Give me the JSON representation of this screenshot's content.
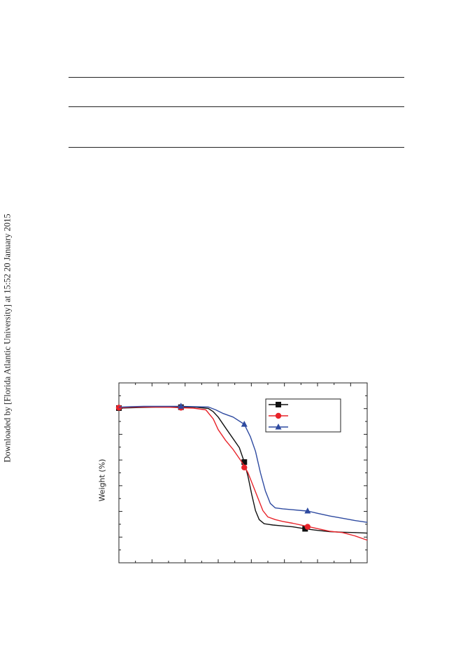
{
  "side_note": "Downloaded by [Florida Atlantic University] at 15:52 20 January 2015",
  "chart_data": {
    "type": "line",
    "ylabel": "Weight (%)",
    "xlabel": "",
    "legend_position": "top-right",
    "grid": false,
    "x_range": [
      0,
      100
    ],
    "y_range": [
      0,
      100
    ],
    "series": [
      {
        "color": "#111111",
        "marker": "square",
        "points": [
          [
            0,
            86
          ],
          [
            8,
            86.3
          ],
          [
            15,
            86.5
          ],
          [
            25,
            86.5
          ],
          [
            31,
            86.5
          ],
          [
            36,
            85.8
          ],
          [
            38,
            84
          ],
          [
            40,
            81
          ],
          [
            43,
            75
          ],
          [
            46,
            69
          ],
          [
            48.5,
            64
          ],
          [
            50.5,
            56
          ],
          [
            52,
            48
          ],
          [
            53.5,
            38
          ],
          [
            55,
            29
          ],
          [
            56.5,
            24
          ],
          [
            58.5,
            21.7
          ],
          [
            62,
            21
          ],
          [
            66,
            20.5
          ],
          [
            70,
            20
          ],
          [
            75,
            18.9
          ],
          [
            80,
            18
          ],
          [
            85,
            17.3
          ],
          [
            90,
            17
          ],
          [
            95,
            16.8
          ],
          [
            100,
            16.5
          ]
        ],
        "marker_points": [
          [
            0,
            86
          ],
          [
            25,
            86.5
          ],
          [
            50.5,
            56
          ],
          [
            75,
            18.9
          ]
        ]
      },
      {
        "color": "#e8232a",
        "marker": "circle",
        "points": [
          [
            0,
            86.2
          ],
          [
            5,
            86.5
          ],
          [
            12,
            86.6
          ],
          [
            20,
            86.5
          ],
          [
            25,
            86.2
          ],
          [
            30,
            86
          ],
          [
            35,
            85
          ],
          [
            38,
            80
          ],
          [
            40,
            74
          ],
          [
            43,
            68
          ],
          [
            46,
            63
          ],
          [
            48,
            59
          ],
          [
            50,
            55
          ],
          [
            52,
            50
          ],
          [
            54,
            43
          ],
          [
            56,
            36
          ],
          [
            58,
            29
          ],
          [
            60,
            25.5
          ],
          [
            63,
            24
          ],
          [
            66,
            23
          ],
          [
            70,
            22
          ],
          [
            75,
            20.5
          ],
          [
            80,
            19
          ],
          [
            85,
            17.5
          ],
          [
            90,
            16.8
          ],
          [
            95,
            15
          ],
          [
            100,
            12.6
          ]
        ],
        "marker_points": [
          [
            0,
            86.2
          ],
          [
            25,
            86.2
          ],
          [
            50.5,
            53
          ],
          [
            76,
            20
          ]
        ]
      },
      {
        "color": "#2e4aa0",
        "marker": "triangle",
        "points": [
          [
            0,
            86.5
          ],
          [
            5,
            86.8
          ],
          [
            10,
            87
          ],
          [
            20,
            87
          ],
          [
            25,
            87
          ],
          [
            30,
            86.8
          ],
          [
            36,
            86.6
          ],
          [
            39,
            85
          ],
          [
            42,
            83
          ],
          [
            46,
            81
          ],
          [
            50.5,
            77
          ],
          [
            53,
            70
          ],
          [
            55,
            62
          ],
          [
            57,
            50
          ],
          [
            59,
            40
          ],
          [
            61,
            33
          ],
          [
            63,
            30.5
          ],
          [
            66,
            30
          ],
          [
            70,
            29.5
          ],
          [
            74,
            29
          ],
          [
            76,
            28.8
          ],
          [
            80,
            27.5
          ],
          [
            85,
            26
          ],
          [
            90,
            24.8
          ],
          [
            95,
            23.5
          ],
          [
            100,
            22.5
          ]
        ],
        "marker_points": [
          [
            25,
            87
          ],
          [
            50.5,
            77
          ],
          [
            76,
            28.8
          ]
        ]
      }
    ]
  }
}
